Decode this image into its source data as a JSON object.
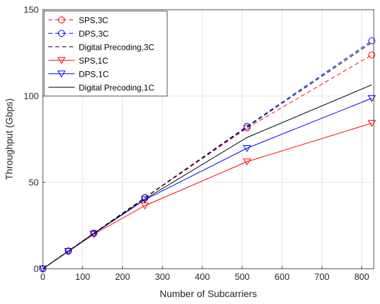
{
  "chart_data": {
    "type": "line",
    "xlabel": "Number of Subcarriers",
    "ylabel": "Throughput (Gbps)",
    "xlim": [
      0,
      830
    ],
    "ylim": [
      0,
      150
    ],
    "xticks": [
      0,
      100,
      200,
      300,
      400,
      500,
      600,
      700,
      800
    ],
    "yticks": [
      0,
      50,
      100,
      150
    ],
    "grid": true,
    "legend_position": "top-left",
    "x": [
      0,
      64,
      128,
      256,
      512,
      825
    ],
    "series": [
      {
        "name": "SPS,3C",
        "color": "#ff0000",
        "dash": "dashed",
        "marker": "circle",
        "values": [
          0,
          10.2,
          20.5,
          41.0,
          81.5,
          123.8
        ]
      },
      {
        "name": "DPS,3C",
        "color": "#0000ff",
        "dash": "dashed",
        "marker": "circle",
        "values": [
          0,
          10.3,
          20.6,
          41.2,
          82.5,
          132.0
        ]
      },
      {
        "name": "Digital Precoding,3C",
        "color": "#000000",
        "dash": "dashed",
        "marker": "none",
        "values": [
          0,
          10.3,
          20.6,
          41.2,
          82.0,
          131.0
        ]
      },
      {
        "name": "SPS,1C",
        "color": "#ff0000",
        "dash": "solid",
        "marker": "triangle-down",
        "values": [
          0,
          10.0,
          20.0,
          36.5,
          62.0,
          84.3
        ]
      },
      {
        "name": "DPS,1C",
        "color": "#0000ff",
        "dash": "solid",
        "marker": "triangle-down",
        "values": [
          0,
          10.1,
          20.3,
          40.0,
          69.8,
          98.7
        ]
      },
      {
        "name": "Digital Precoding,1C",
        "color": "#000000",
        "dash": "solid",
        "marker": "none",
        "values": [
          0,
          10.2,
          20.5,
          40.3,
          76.0,
          106.5
        ]
      }
    ]
  }
}
